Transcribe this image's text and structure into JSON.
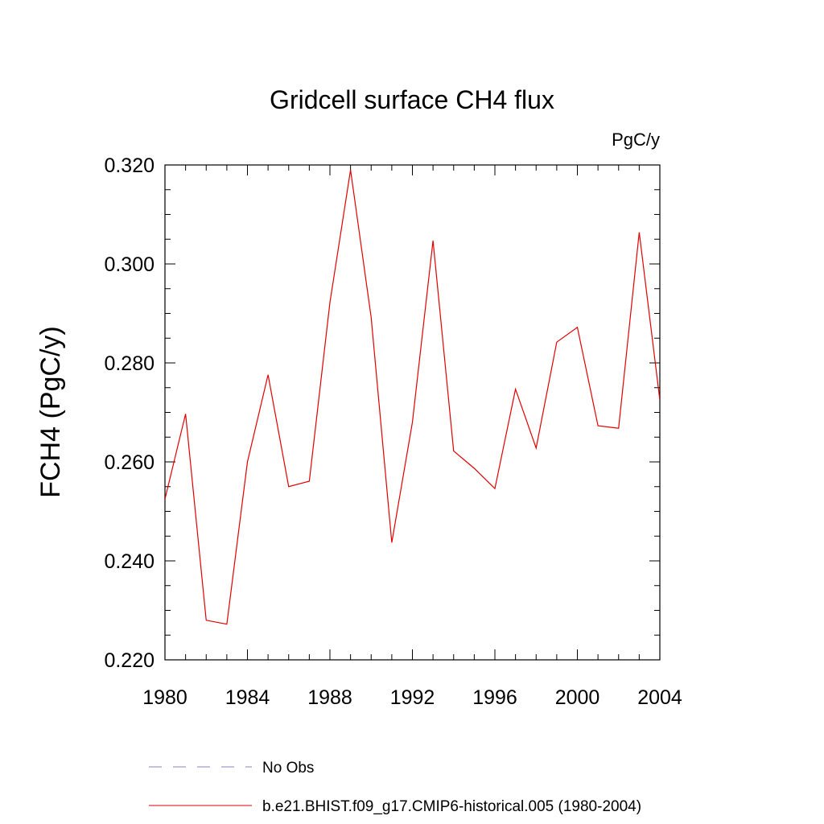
{
  "chart_data": {
    "type": "line",
    "title": "Gridcell surface CH4 flux",
    "units_label": "PgC/y",
    "ylabel": "FCH4  (PgC/y)",
    "xlabel": "",
    "xlim": [
      1980,
      2004
    ],
    "ylim": [
      0.22,
      0.32
    ],
    "x_ticks": [
      1980,
      1984,
      1988,
      1992,
      1996,
      2000,
      2004
    ],
    "x_tick_labels": [
      "1980",
      "1984",
      "1988",
      "1992",
      "1996",
      "2000",
      "2004"
    ],
    "y_ticks": [
      0.22,
      0.24,
      0.26,
      0.28,
      0.3,
      0.32
    ],
    "y_tick_labels": [
      "0.220",
      "0.240",
      "0.260",
      "0.280",
      "0.300",
      "0.320"
    ],
    "series": [
      {
        "name": "b.e21.BHIST.f09_g17.CMIP6-historical.005 (1980-2004)",
        "color": "#e00000",
        "style": "solid",
        "x": [
          1980,
          1981,
          1982,
          1983,
          1984,
          1985,
          1986,
          1987,
          1988,
          1989,
          1990,
          1991,
          1992,
          1993,
          1994,
          1995,
          1996,
          1997,
          1998,
          1999,
          2000,
          2001,
          2002,
          2003,
          2004
        ],
        "values": [
          0.2525,
          0.2697,
          0.228,
          0.2272,
          0.26,
          0.2776,
          0.255,
          0.2561,
          0.2922,
          0.319,
          0.2892,
          0.2437,
          0.268,
          0.3047,
          0.2622,
          0.2587,
          0.2546,
          0.2747,
          0.2628,
          0.2842,
          0.2872,
          0.2673,
          0.2668,
          0.3064,
          0.2725
        ]
      }
    ],
    "legend": {
      "placement": "bottom",
      "entries": [
        {
          "label": "No Obs",
          "color": "#8c7fc8",
          "style": "dashed"
        },
        {
          "label": "b.e21.BHIST.f09_g17.CMIP6-historical.005 (1980-2004)",
          "color": "#e00000",
          "style": "solid"
        }
      ]
    },
    "grid": false
  }
}
